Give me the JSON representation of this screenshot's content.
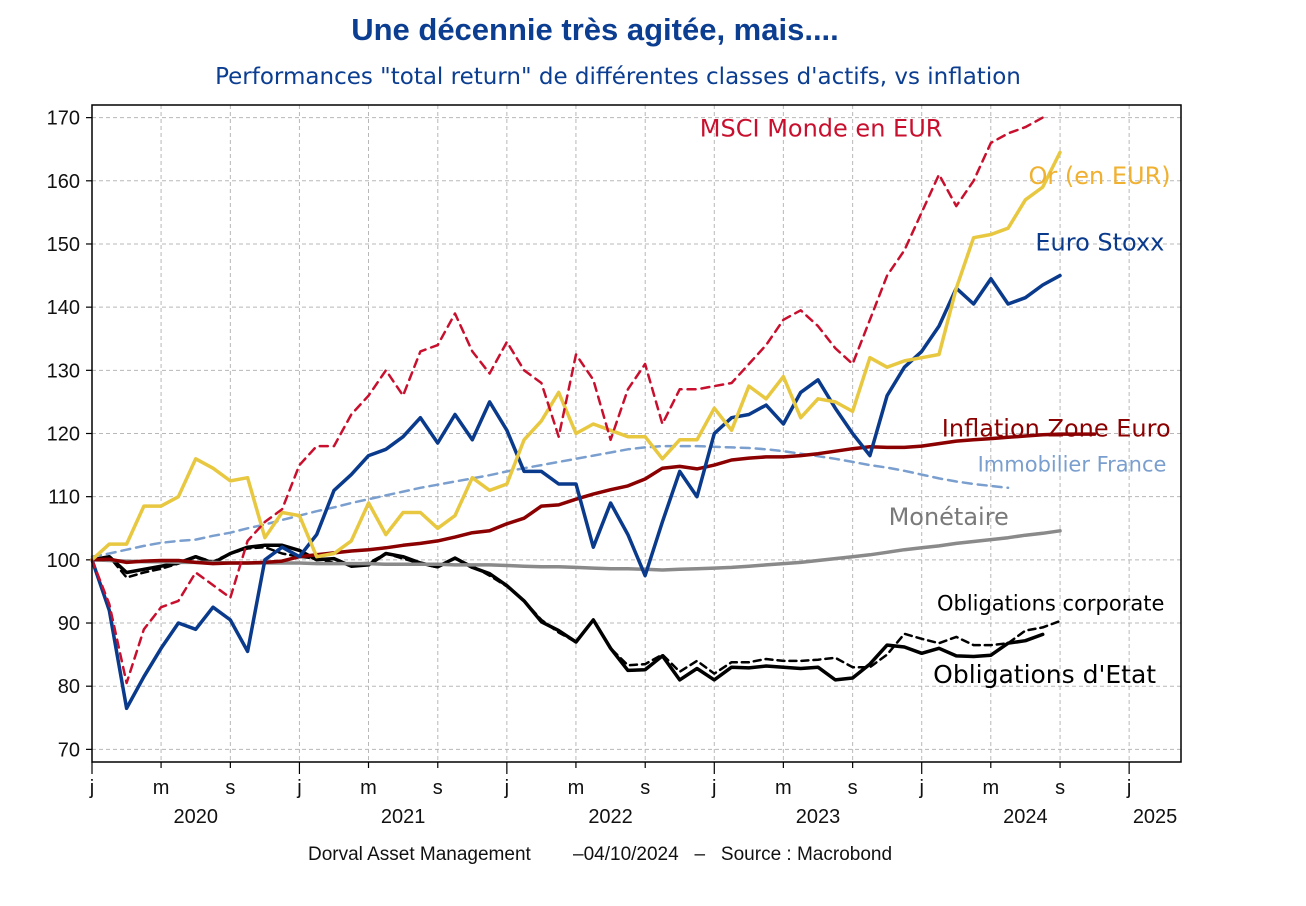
{
  "chart_data": {
    "type": "line",
    "title": "Une décennie très agitée, mais....",
    "subtitle": "Performances \"total return\" de différentes classes d'actifs, vs inflation",
    "xlabel": "",
    "ylabel": "",
    "ylim": [
      68,
      172
    ],
    "xlim": [
      2020.0,
      2025.25
    ],
    "grid": true,
    "y_ticks": [
      70,
      80,
      90,
      100,
      110,
      120,
      130,
      140,
      150,
      160,
      170
    ],
    "x_ticks": [
      {
        "x": 2020.0,
        "label": "j"
      },
      {
        "x": 2020.333,
        "label": "m"
      },
      {
        "x": 2020.667,
        "label": "s"
      },
      {
        "x": 2021.0,
        "label": "j"
      },
      {
        "x": 2021.333,
        "label": "m"
      },
      {
        "x": 2021.667,
        "label": "s"
      },
      {
        "x": 2022.0,
        "label": "j"
      },
      {
        "x": 2022.333,
        "label": "m"
      },
      {
        "x": 2022.667,
        "label": "s"
      },
      {
        "x": 2023.0,
        "label": "j"
      },
      {
        "x": 2023.333,
        "label": "m"
      },
      {
        "x": 2023.667,
        "label": "s"
      },
      {
        "x": 2024.0,
        "label": "j"
      },
      {
        "x": 2024.333,
        "label": "m"
      },
      {
        "x": 2024.667,
        "label": "s"
      },
      {
        "x": 2025.0,
        "label": "j"
      }
    ],
    "year_labels": [
      {
        "x": 2020.5,
        "label": "2020"
      },
      {
        "x": 2021.5,
        "label": "2021"
      },
      {
        "x": 2022.5,
        "label": "2022"
      },
      {
        "x": 2023.5,
        "label": "2023"
      },
      {
        "x": 2024.5,
        "label": "2024"
      },
      {
        "x": 2025.125,
        "label": "2025"
      }
    ],
    "x_start": 2020.0,
    "x_step": 0.0833333,
    "series": [
      {
        "name": "MSCI Monde en EUR",
        "color": "#c8102e",
        "dash": "8,6",
        "width": 2.5,
        "label_anchor": [
          2024.1,
          167
        ],
        "label_size": 24,
        "label_color": "#c8102e",
        "values": [
          100,
          93,
          80.5,
          89,
          92.5,
          93.5,
          98,
          96,
          94,
          103,
          106,
          108,
          115,
          118,
          118,
          123,
          126,
          130,
          126,
          133,
          134,
          139,
          133,
          129.5,
          134.5,
          130,
          128,
          119.5,
          132.5,
          128.5,
          119,
          127,
          131,
          121.5,
          127,
          127,
          127.5,
          128,
          131,
          134,
          138,
          139.5,
          137,
          133.5,
          131,
          138,
          145,
          149,
          155,
          161,
          156,
          160,
          166,
          167.5,
          168.5,
          170
        ]
      },
      {
        "name": "Or (en EUR)",
        "color": "#e8c840",
        "dash": "",
        "width": 3.5,
        "label_anchor": [
          2025.2,
          159.5
        ],
        "label_size": 24,
        "label_color": "#f0b030",
        "values": [
          100,
          102.5,
          102.5,
          108.5,
          108.5,
          110,
          116,
          114.5,
          112.5,
          113,
          103.5,
          107.5,
          107,
          100.5,
          101,
          103,
          109,
          104,
          107.5,
          107.5,
          105,
          107,
          113,
          111,
          112,
          119,
          122,
          126.5,
          120,
          121.5,
          120.5,
          119.5,
          119.5,
          116,
          119,
          119,
          124,
          120.5,
          127.5,
          125.5,
          129,
          122.5,
          125.5,
          125,
          123.5,
          132,
          130.5,
          131.5,
          132,
          132.5,
          143,
          151,
          151.5,
          152.5,
          157,
          159,
          164.5
        ]
      },
      {
        "name": "Euro Stoxx",
        "color": "#0a3a8c",
        "dash": "",
        "width": 3.5,
        "label_anchor": [
          2025.17,
          149
        ],
        "label_size": 24,
        "label_color": "#0a3a8c",
        "values": [
          100,
          92,
          76.5,
          81.5,
          86,
          90,
          89,
          92.5,
          90.5,
          85.5,
          100,
          102,
          100.5,
          104,
          111,
          113.5,
          116.5,
          117.5,
          119.5,
          122.5,
          118.5,
          123,
          119,
          125,
          120.5,
          114,
          114,
          112,
          112,
          102,
          109,
          104,
          97.5,
          106,
          114,
          110,
          120,
          122.5,
          123,
          124.5,
          121.5,
          126.5,
          128.5,
          124,
          120,
          116.5,
          126,
          130.5,
          133,
          137,
          143,
          140.5,
          144.5,
          140.5,
          141.5,
          143.5,
          145
        ]
      },
      {
        "name": "Inflation Zone Euro",
        "color": "#8b0000",
        "dash": "",
        "width": 3.5,
        "label_anchor": [
          2025.2,
          119.5
        ],
        "label_size": 24,
        "label_color": "#8b0000",
        "values": [
          100,
          100.1,
          99.6,
          99.8,
          99.9,
          99.9,
          99.6,
          99.4,
          99.5,
          99.5,
          99.6,
          99.8,
          100.5,
          100.8,
          101.1,
          101.4,
          101.6,
          101.9,
          102.3,
          102.6,
          103.0,
          103.6,
          104.3,
          104.6,
          105.7,
          106.6,
          108.5,
          108.7,
          109.6,
          110.4,
          111.1,
          111.7,
          112.8,
          114.5,
          114.8,
          114.4,
          115.0,
          115.8,
          116.1,
          116.3,
          116.3,
          116.5,
          116.8,
          117.2,
          117.6,
          117.9,
          117.8,
          117.8,
          118.0,
          118.4,
          118.8,
          119.0,
          119.2,
          119.4,
          119.6,
          119.8,
          119.9,
          119.9,
          119.9
        ]
      },
      {
        "name": "Immobilier France",
        "color": "#7a9fcf",
        "dash": "9,6",
        "width": 2.5,
        "label_anchor": [
          2025.18,
          114
        ],
        "label_size": 21,
        "label_color": "#7a9fcf",
        "values": [
          100.5,
          101,
          101.6,
          102.2,
          102.7,
          103,
          103.2,
          103.8,
          104.3,
          105,
          105.6,
          106.3,
          107,
          107.7,
          108.3,
          109,
          109.6,
          110.2,
          110.8,
          111.4,
          111.9,
          112.4,
          112.9,
          113.4,
          114,
          114.5,
          115,
          115.5,
          116,
          116.5,
          117,
          117.5,
          117.8,
          118,
          118,
          118,
          117.9,
          117.8,
          117.7,
          117.5,
          117.2,
          116.8,
          116.4,
          116,
          115.5,
          115,
          114.6,
          114.1,
          113.5,
          112.9,
          112.4,
          112,
          111.7,
          111.4
        ]
      },
      {
        "name": "Monétaire",
        "color": "#8a8a8a",
        "dash": "",
        "width": 3.5,
        "label_anchor": [
          2024.42,
          105.5
        ],
        "label_size": 24,
        "label_color": "#7a7a7a",
        "values": [
          100,
          99.9,
          99.8,
          99.7,
          99.7,
          99.6,
          99.6,
          99.6,
          99.5,
          99.5,
          99.5,
          99.5,
          99.5,
          99.4,
          99.4,
          99.4,
          99.4,
          99.3,
          99.3,
          99.3,
          99.3,
          99.2,
          99.2,
          99.2,
          99.1,
          99.0,
          98.9,
          98.9,
          98.8,
          98.7,
          98.6,
          98.6,
          98.5,
          98.4,
          98.5,
          98.6,
          98.7,
          98.8,
          99.0,
          99.2,
          99.4,
          99.6,
          99.9,
          100.2,
          100.5,
          100.8,
          101.2,
          101.6,
          101.9,
          102.2,
          102.6,
          102.9,
          103.2,
          103.5,
          103.9,
          104.2,
          104.6
        ]
      },
      {
        "name": "Obligations corporate",
        "color": "#000000",
        "dash": "7,5",
        "width": 2.5,
        "label_anchor": [
          2025.17,
          92
        ],
        "label_size": 21,
        "label_color": "#000000",
        "values": [
          100,
          100.5,
          97.2,
          98,
          98.6,
          99.4,
          100.5,
          99.7,
          101,
          101.8,
          102,
          101,
          100.5,
          100.2,
          99.5,
          99.4,
          99.5,
          101,
          100.2,
          99.4,
          98.8,
          100.2,
          99,
          97.5,
          95.8,
          93.5,
          90.5,
          88.5,
          87,
          90.5,
          86,
          83.3,
          83.5,
          85,
          82.3,
          84,
          82,
          83.8,
          83.8,
          84.3,
          84,
          84,
          84.2,
          84.5,
          83,
          83,
          85,
          88.3,
          87.5,
          86.8,
          87.8,
          86.5,
          86.5,
          86.8,
          88.8,
          89.3,
          90.3
        ]
      },
      {
        "name": "Obligations d'Etat",
        "color": "#000000",
        "dash": "",
        "width": 3.5,
        "label_anchor": [
          2025.13,
          80.5
        ],
        "label_size": 25,
        "label_color": "#000000",
        "values": [
          100,
          100.5,
          98,
          98.5,
          99,
          99.5,
          100.5,
          99.5,
          101,
          102,
          102.3,
          102.3,
          101.5,
          100,
          100.2,
          99,
          99.2,
          101,
          100.5,
          99.5,
          98.9,
          100.3,
          98.8,
          97.8,
          95.9,
          93.5,
          90.2,
          88.8,
          87,
          90.5,
          86,
          82.5,
          82.6,
          84.8,
          81,
          82.8,
          81,
          83,
          82.9,
          83.2,
          83,
          82.8,
          83,
          81,
          81.3,
          83.5,
          86.5,
          86.2,
          85.2,
          86,
          84.8,
          84.7,
          84.9,
          86.8,
          87.2,
          88.2
        ]
      }
    ],
    "source": "Dorval Asset Management        –04/10/2024   –   Source : Macrobond"
  }
}
